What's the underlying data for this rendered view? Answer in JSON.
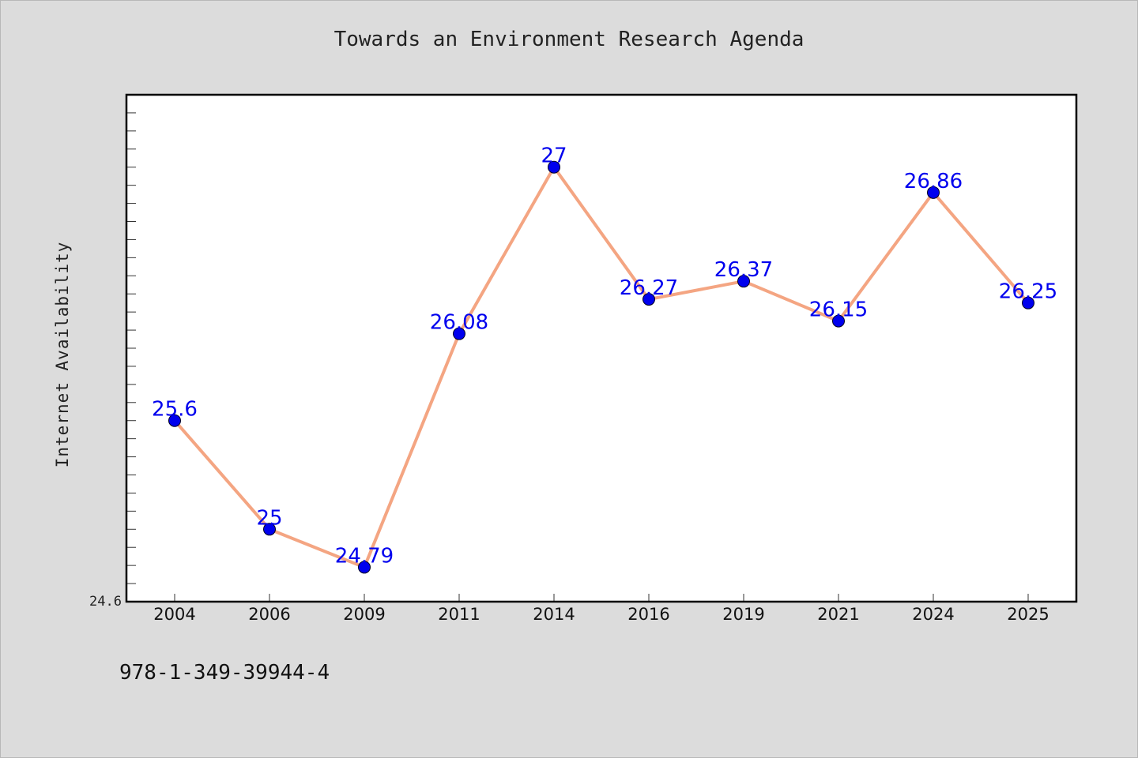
{
  "chart_data": {
    "type": "line",
    "title": "Towards an Environment Research Agenda",
    "xlabel": "",
    "ylabel": "Internet Availability",
    "categories": [
      "2004",
      "2006",
      "2009",
      "2011",
      "2014",
      "2016",
      "2019",
      "2021",
      "2024",
      "2025"
    ],
    "values": [
      25.6,
      25,
      24.79,
      26.08,
      27,
      26.27,
      26.37,
      26.15,
      26.86,
      26.25
    ],
    "data_labels": [
      "25.6",
      "25",
      "24.79",
      "26.08",
      "27",
      "26.27",
      "26.37",
      "26.15",
      "26.86",
      "26.25"
    ],
    "ylim": [
      24.6,
      27.4
    ],
    "y_tick_labels": [
      "24.6"
    ],
    "grid": false,
    "legend": "none",
    "colors": {
      "line": "#f4a582",
      "marker": "#0000ee",
      "data_label": "#0000ee",
      "plot_background": "#ffffff",
      "page_background": "#dcdcdc"
    }
  },
  "footer": {
    "isbn": "978-1-349-39944-4"
  }
}
